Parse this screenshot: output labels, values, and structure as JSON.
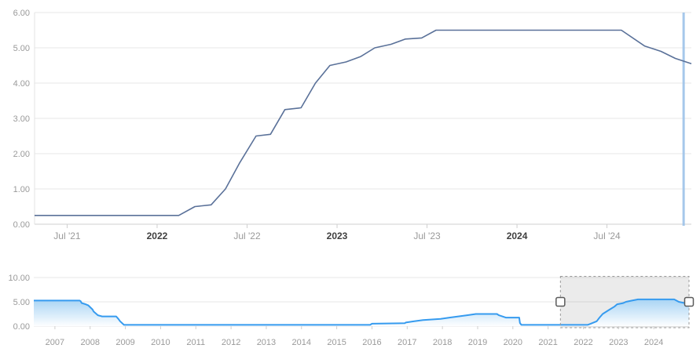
{
  "chart_data": [
    {
      "id": "main-rate-chart",
      "type": "line",
      "title": "",
      "xlabel": "",
      "ylabel": "",
      "grid": true,
      "legend": "none",
      "xlim": [
        2021.319,
        2024.969
      ],
      "ylim": [
        0,
        6
      ],
      "y_ticks": [
        {
          "label": "6.00",
          "v": 6
        },
        {
          "label": "5.00",
          "v": 5
        },
        {
          "label": "4.00",
          "v": 4
        },
        {
          "label": "3.00",
          "v": 3
        },
        {
          "label": "2.00",
          "v": 2
        },
        {
          "label": "1.00",
          "v": 1
        },
        {
          "label": "0.00",
          "v": 0
        }
      ],
      "x_ticks": [
        {
          "label": "Jul '21",
          "t": 2021.5,
          "bold": false
        },
        {
          "label": "2022",
          "t": 2022.0,
          "bold": true
        },
        {
          "label": "Jul '22",
          "t": 2022.5,
          "bold": false
        },
        {
          "label": "2023",
          "t": 2023.0,
          "bold": true
        },
        {
          "label": "Jul '23",
          "t": 2023.5,
          "bold": false
        },
        {
          "label": "2024",
          "t": 2024.0,
          "bold": true
        },
        {
          "label": "Jul '24",
          "t": 2024.5,
          "bold": false
        }
      ],
      "series": [
        {
          "name": "policy-rate",
          "color": "#5a7199",
          "points": [
            [
              2021.319,
              0.25
            ],
            [
              2022.12,
              0.25
            ],
            [
              2022.21,
              0.5
            ],
            [
              2022.3,
              0.55
            ],
            [
              2022.38,
              1.0
            ],
            [
              2022.46,
              1.75
            ],
            [
              2022.55,
              2.5
            ],
            [
              2022.63,
              2.55
            ],
            [
              2022.71,
              3.25
            ],
            [
              2022.8,
              3.3
            ],
            [
              2022.88,
              4.0
            ],
            [
              2022.96,
              4.5
            ],
            [
              2023.05,
              4.6
            ],
            [
              2023.13,
              4.75
            ],
            [
              2023.21,
              5.0
            ],
            [
              2023.3,
              5.1
            ],
            [
              2023.38,
              5.25
            ],
            [
              2023.47,
              5.28
            ],
            [
              2023.55,
              5.5
            ],
            [
              2024.58,
              5.5
            ],
            [
              2024.71,
              5.05
            ],
            [
              2024.8,
              4.9
            ],
            [
              2024.88,
              4.7
            ],
            [
              2024.969,
              4.55
            ]
          ]
        }
      ],
      "plotline": {
        "t": 2024.926,
        "color": "#9cc2e9"
      }
    },
    {
      "id": "range-navigator",
      "type": "area",
      "title": "",
      "grid": true,
      "xlim": [
        2006.4,
        2025.0
      ],
      "ylim": [
        0,
        10
      ],
      "y_ticks": [
        {
          "label": "10.00",
          "v": 10
        },
        {
          "label": "5.00",
          "v": 5
        },
        {
          "label": "0.00",
          "v": 0
        }
      ],
      "x_ticks": [
        {
          "label": "2007",
          "t": 2007
        },
        {
          "label": "2008",
          "t": 2008
        },
        {
          "label": "2009",
          "t": 2009
        },
        {
          "label": "2010",
          "t": 2010
        },
        {
          "label": "2011",
          "t": 2011
        },
        {
          "label": "2012",
          "t": 2012
        },
        {
          "label": "2013",
          "t": 2013
        },
        {
          "label": "2014",
          "t": 2014
        },
        {
          "label": "2015",
          "t": 2015
        },
        {
          "label": "2016",
          "t": 2016
        },
        {
          "label": "2017",
          "t": 2017
        },
        {
          "label": "2018",
          "t": 2018
        },
        {
          "label": "2019",
          "t": 2019
        },
        {
          "label": "2020",
          "t": 2020
        },
        {
          "label": "2021",
          "t": 2021
        },
        {
          "label": "2022",
          "t": 2022
        },
        {
          "label": "2023",
          "t": 2023
        },
        {
          "label": "2024",
          "t": 2024
        }
      ],
      "series": [
        {
          "name": "policy-rate-history",
          "color": "#369bef",
          "fill_top": "#a9d4f4",
          "fill_bottom": "#fdfeff",
          "points": [
            [
              2006.4,
              5.25
            ],
            [
              2007.7,
              5.25
            ],
            [
              2007.73,
              5.15
            ],
            [
              2007.76,
              4.75
            ],
            [
              2007.83,
              4.6
            ],
            [
              2007.87,
              4.5
            ],
            [
              2007.95,
              4.25
            ],
            [
              2008.07,
              3.4
            ],
            [
              2008.1,
              3.0
            ],
            [
              2008.22,
              2.25
            ],
            [
              2008.34,
              2.0
            ],
            [
              2008.74,
              2.0
            ],
            [
              2008.8,
              1.5
            ],
            [
              2008.85,
              1.0
            ],
            [
              2008.96,
              0.25
            ],
            [
              2015.95,
              0.25
            ],
            [
              2016.0,
              0.5
            ],
            [
              2016.93,
              0.6
            ],
            [
              2016.96,
              0.75
            ],
            [
              2017.2,
              1.0
            ],
            [
              2017.45,
              1.25
            ],
            [
              2017.95,
              1.5
            ],
            [
              2018.2,
              1.75
            ],
            [
              2018.45,
              2.0
            ],
            [
              2018.7,
              2.25
            ],
            [
              2018.95,
              2.5
            ],
            [
              2019.55,
              2.5
            ],
            [
              2019.6,
              2.25
            ],
            [
              2019.7,
              2.0
            ],
            [
              2019.8,
              1.75
            ],
            [
              2020.18,
              1.75
            ],
            [
              2020.2,
              0.65
            ],
            [
              2020.24,
              0.25
            ],
            [
              2022.12,
              0.25
            ],
            [
              2022.21,
              0.5
            ],
            [
              2022.38,
              1.0
            ],
            [
              2022.46,
              1.75
            ],
            [
              2022.55,
              2.5
            ],
            [
              2022.71,
              3.25
            ],
            [
              2022.88,
              4.0
            ],
            [
              2022.96,
              4.5
            ],
            [
              2023.13,
              4.75
            ],
            [
              2023.21,
              5.0
            ],
            [
              2023.38,
              5.25
            ],
            [
              2023.55,
              5.5
            ],
            [
              2024.58,
              5.5
            ],
            [
              2024.71,
              5.0
            ],
            [
              2024.88,
              4.75
            ],
            [
              2025.0,
              4.55
            ]
          ]
        }
      ],
      "selection": {
        "from": 2021.35,
        "to": 2025.0,
        "mask_fill": "#000000",
        "mask_opacity": 0.08,
        "border_color": "#999999"
      }
    }
  ],
  "colors": {
    "gridline": "#e7e7e7",
    "axis_line": "#cfcfcf",
    "side_axis_line": "#e3e3e3",
    "label_gray": "#9a9a9a",
    "label_dark": "#3f3f3f",
    "handle_fill": "#ffffff",
    "handle_border": "#5a5a5a"
  }
}
